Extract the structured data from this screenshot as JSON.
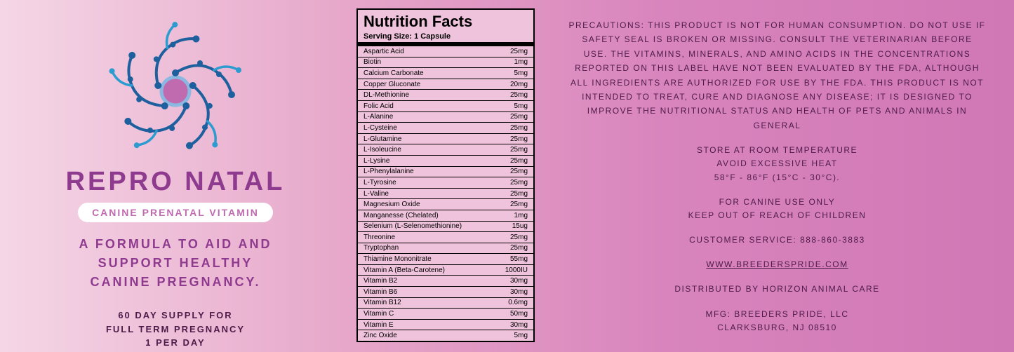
{
  "left": {
    "product_name": "REPRO NATAL",
    "subtitle": "CANINE PRENATAL VITAMIN",
    "tagline_l1": "A FORMULA TO AID AND",
    "tagline_l2": "SUPPORT HEALTHY",
    "tagline_l3": "CANINE PREGNANCY.",
    "supply_l1": "60 DAY SUPPLY FOR",
    "supply_l2": "FULL TERM PREGNANCY",
    "supply_l3": "1 PER DAY",
    "logo_colors": {
      "outer_arms": "#2b9bd0",
      "inner_arms": "#1e5f9e",
      "center_ring": "#8ab8e0",
      "center_fill": "#c06bb0"
    }
  },
  "nutrition": {
    "title": "Nutrition Facts",
    "serving": "Serving Size: 1 Capsule",
    "rows": [
      {
        "name": "Aspartic Acid",
        "val": "25mg"
      },
      {
        "name": "Biotin",
        "val": "1mg"
      },
      {
        "name": "Calcium Carbonate",
        "val": "5mg"
      },
      {
        "name": "Copper Gluconate",
        "val": "20mg"
      },
      {
        "name": "DL-Methionine",
        "val": "25mg"
      },
      {
        "name": "Folic Acid",
        "val": "5mg"
      },
      {
        "name": "L-Alanine",
        "val": "25mg"
      },
      {
        "name": "L-Cysteine",
        "val": "25mg"
      },
      {
        "name": "L-Glutamine",
        "val": "25mg"
      },
      {
        "name": "L-Isoleucine",
        "val": "25mg"
      },
      {
        "name": "L-Lysine",
        "val": "25mg"
      },
      {
        "name": "L-Phenylalanine",
        "val": "25mg"
      },
      {
        "name": "L-Tyrosine",
        "val": "25mg"
      },
      {
        "name": "L-Valine",
        "val": "25mg"
      },
      {
        "name": "Magnesium Oxide",
        "val": "25mg"
      },
      {
        "name": "Manganesse (Chelated)",
        "val": "1mg"
      },
      {
        "name": "Selenium (L-Selenomethionine)",
        "val": "15ug"
      },
      {
        "name": "Threonine",
        "val": "25mg"
      },
      {
        "name": "Tryptophan",
        "val": "25mg"
      },
      {
        "name": "Thiamine Mononitrate",
        "val": "55mg"
      },
      {
        "name": "Vitamin A (Beta-Carotene)",
        "val": "1000IU"
      },
      {
        "name": "Vitamin B2",
        "val": "30mg"
      },
      {
        "name": "Vitamin B6",
        "val": "30mg"
      },
      {
        "name": "Vitamin B12",
        "val": "0.6mg"
      },
      {
        "name": "Vitamin C",
        "val": "50mg"
      },
      {
        "name": "Vitamin E",
        "val": "30mg"
      },
      {
        "name": "Zinc Oxide",
        "val": "5mg"
      }
    ]
  },
  "right": {
    "precautions": "PRECAUTIONS: THIS PRODUCT IS NOT FOR HUMAN CONSUMPTION. DO NOT USE IF SAFETY SEAL IS BROKEN OR MISSING. CONSULT THE VETERINARIAN BEFORE USE. THE VITAMINS, MINERALS, AND AMINO ACIDS IN THE CONCENTRATIONS REPORTED ON THIS LABEL HAVE NOT BEEN EVALUATED BY THE FDA, ALTHOUGH ALL INGREDIENTS ARE AUTHORIZED FOR USE BY THE FDA. THIS PRODUCT IS NOT INTENDED TO TREAT, CURE AND DIAGNOSE ANY DISEASE; IT IS DESIGNED TO IMPROVE THE NUTRITIONAL STATUS AND HEALTH OF PETS AND ANIMALS IN GENERAL",
    "storage_l1": "STORE AT ROOM TEMPERATURE",
    "storage_l2": "AVOID EXCESSIVE HEAT",
    "storage_l3": "58°F - 86°F (15°C - 30°C).",
    "canine_l1": "FOR CANINE USE ONLY",
    "canine_l2": "KEEP OUT OF REACH OF CHILDREN",
    "customer_service": "CUSTOMER SERVICE: 888-860-3883",
    "website": "WWW.BREEDERSPRIDE.COM",
    "distributor": "DISTRIBUTED BY HORIZON ANIMAL CARE",
    "mfg_l1": "MFG: BREEDERS PRIDE, LLC",
    "mfg_l2": "CLARKSBURG, NJ 08510"
  }
}
